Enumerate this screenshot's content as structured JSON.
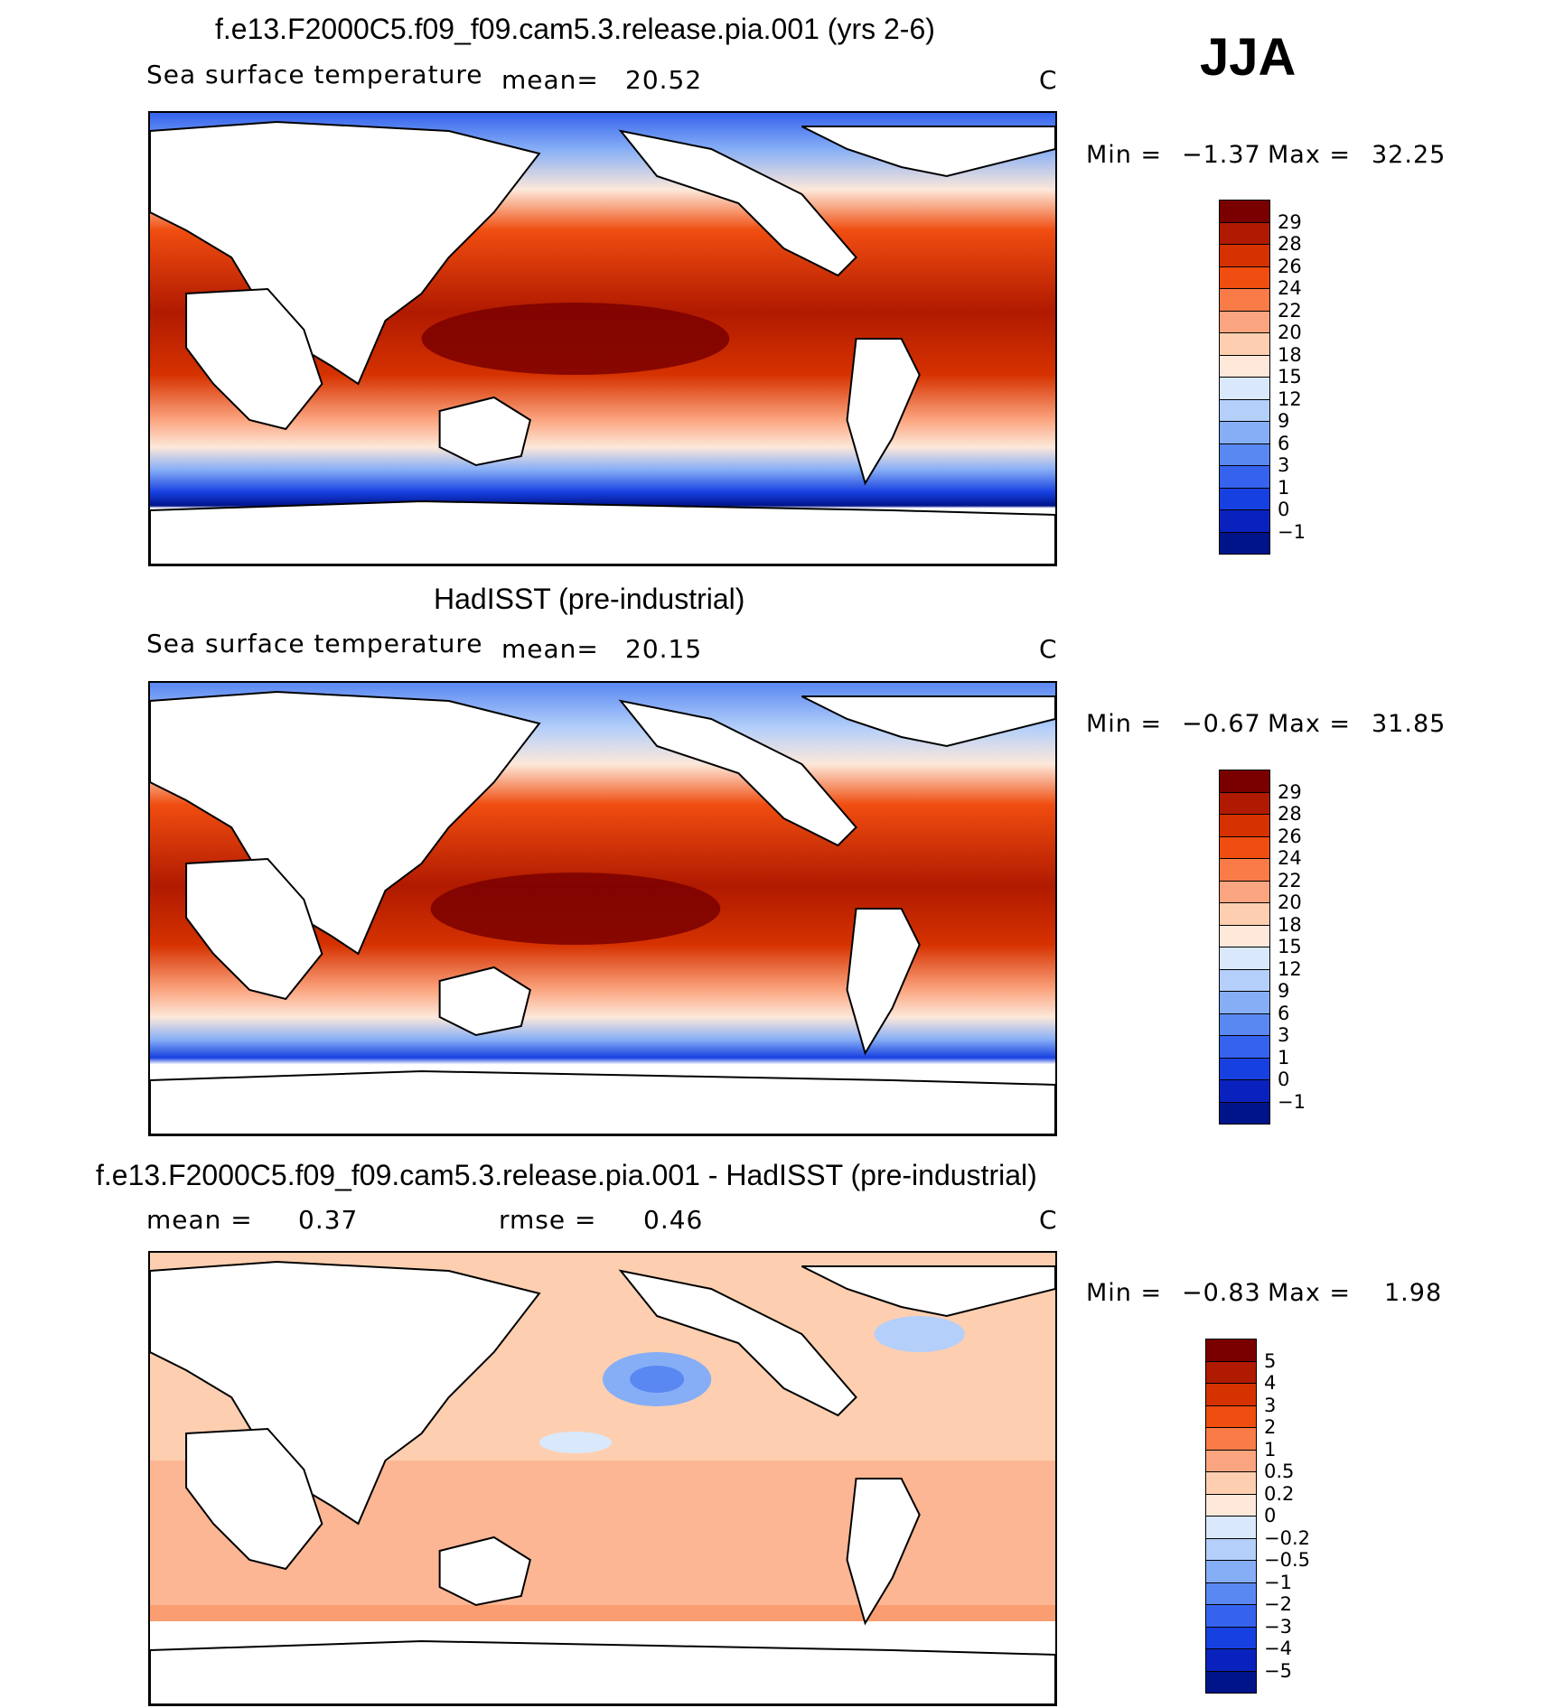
{
  "season": "JJA",
  "panels": [
    {
      "title": "f.e13.F2000C5.f09_f09.cam5.3.release.pia.001 (yrs 2-6)",
      "field": "Sea surface temperature",
      "stat1_label": "mean=",
      "stat1_value": "20.52",
      "stat2_label": "",
      "stat2_value": "",
      "units": "C",
      "min_label": "Min =",
      "min_value": "−1.37",
      "max_label": "Max =",
      "max_value": "32.25",
      "colorbar": {
        "levels": [
          "29",
          "28",
          "26",
          "24",
          "22",
          "20",
          "18",
          "15",
          "12",
          "9",
          "6",
          "3",
          "1",
          "0",
          "−1"
        ],
        "colors": [
          "#7a0000",
          "#b01a00",
          "#d63200",
          "#f04d10",
          "#f97b47",
          "#fba580",
          "#fdcfb0",
          "#fde8da",
          "#d9e8fb",
          "#b3cffa",
          "#86aef6",
          "#5a88f2",
          "#3563ed",
          "#1740e0",
          "#0a22bd",
          "#00148a"
        ]
      }
    },
    {
      "title": "HadISST (pre-industrial)",
      "field": "Sea surface temperature",
      "stat1_label": "mean=",
      "stat1_value": "20.15",
      "stat2_label": "",
      "stat2_value": "",
      "units": "C",
      "min_label": "Min =",
      "min_value": "−0.67",
      "max_label": "Max =",
      "max_value": "31.85",
      "colorbar": {
        "levels": [
          "29",
          "28",
          "26",
          "24",
          "22",
          "20",
          "18",
          "15",
          "12",
          "9",
          "6",
          "3",
          "1",
          "0",
          "−1"
        ],
        "colors": [
          "#7a0000",
          "#b01a00",
          "#d63200",
          "#f04d10",
          "#f97b47",
          "#fba580",
          "#fdcfb0",
          "#fde8da",
          "#d9e8fb",
          "#b3cffa",
          "#86aef6",
          "#5a88f2",
          "#3563ed",
          "#1740e0",
          "#0a22bd",
          "#00148a"
        ]
      }
    },
    {
      "title": "f.e13.F2000C5.f09_f09.cam5.3.release.pia.001 - HadISST (pre-industrial)",
      "field": "",
      "stat1_label": "mean =",
      "stat1_value": "0.37",
      "stat2_label": "rmse =",
      "stat2_value": "0.46",
      "units": "C",
      "min_label": "Min =",
      "min_value": "−0.83",
      "max_label": "Max =",
      "max_value": "1.98",
      "colorbar": {
        "levels": [
          "5",
          "4",
          "3",
          "2",
          "1",
          "0.5",
          "0.2",
          "0",
          "−0.2",
          "−0.5",
          "−1",
          "−2",
          "−3",
          "−4",
          "−5"
        ],
        "colors": [
          "#7a0000",
          "#b01a00",
          "#d63200",
          "#f04d10",
          "#f97b47",
          "#fba580",
          "#fdcfb0",
          "#fde8da",
          "#d9e8fb",
          "#b3cffa",
          "#86aef6",
          "#5a88f2",
          "#3563ed",
          "#1740e0",
          "#0a22bd",
          "#00148a"
        ]
      }
    }
  ]
}
